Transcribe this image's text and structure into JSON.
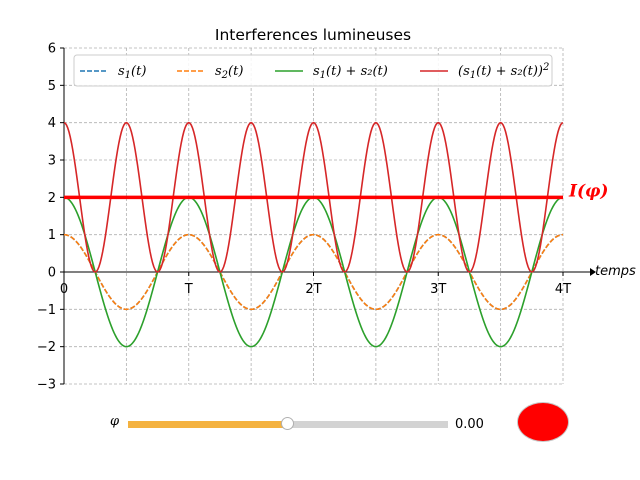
{
  "chart_data": {
    "type": "line",
    "title": "Interferences lumineuses",
    "xlabel": "temps",
    "ylabel": "",
    "xlim": [
      0,
      4
    ],
    "ylim": [
      -3,
      6
    ],
    "x_ticks": [
      {
        "value": 0,
        "label": "0"
      },
      {
        "value": 1,
        "label": "T"
      },
      {
        "value": 2,
        "label": "2T"
      },
      {
        "value": 3,
        "label": "3T"
      },
      {
        "value": 4,
        "label": "4T"
      }
    ],
    "x_minor_grid": [
      0.5,
      1.5,
      2.5,
      3.5
    ],
    "y_ticks": [
      -3,
      -2,
      -1,
      0,
      1,
      2,
      3,
      4,
      5,
      6
    ],
    "grid": true,
    "legend_position": "top",
    "phi": 0,
    "series": [
      {
        "name": "s1(t)",
        "legend_label": {
          "base": "s",
          "sub": "1",
          "rest": "(t)",
          "sup": ""
        },
        "function": "cos",
        "amplitude": 1,
        "color": "#1f77b4",
        "dash": true
      },
      {
        "name": "s2(t)",
        "legend_label": {
          "base": "s",
          "sub": "2",
          "rest": "(t)",
          "sup": ""
        },
        "function": "cos_phi",
        "amplitude": 1,
        "color": "#ff7f0e",
        "dash": true
      },
      {
        "name": "s1(t)+s2(t)",
        "legend_label": {
          "base": "s",
          "sub": "1",
          "rest": "(t) + s₂(t)",
          "sup": ""
        },
        "function": "sum",
        "amplitude": 2,
        "color": "#2ca02c",
        "dash": false
      },
      {
        "name": "(s1(t)+s2(t))^2",
        "legend_label": {
          "base": "(s",
          "sub": "1",
          "rest": "(t) + s₂(t))",
          "sup": "2"
        },
        "function": "sum_squared",
        "amplitude": 4,
        "color": "#d62728",
        "dash": false
      }
    ],
    "intensity": {
      "label": "I(φ)",
      "value": 2,
      "color": "#ff0000"
    }
  },
  "controls": {
    "slider_label": "φ",
    "slider_value": "0.00",
    "slider_fraction": 0.5,
    "slider_fill_color": "#f4b240",
    "button_color": "#ff0000"
  }
}
